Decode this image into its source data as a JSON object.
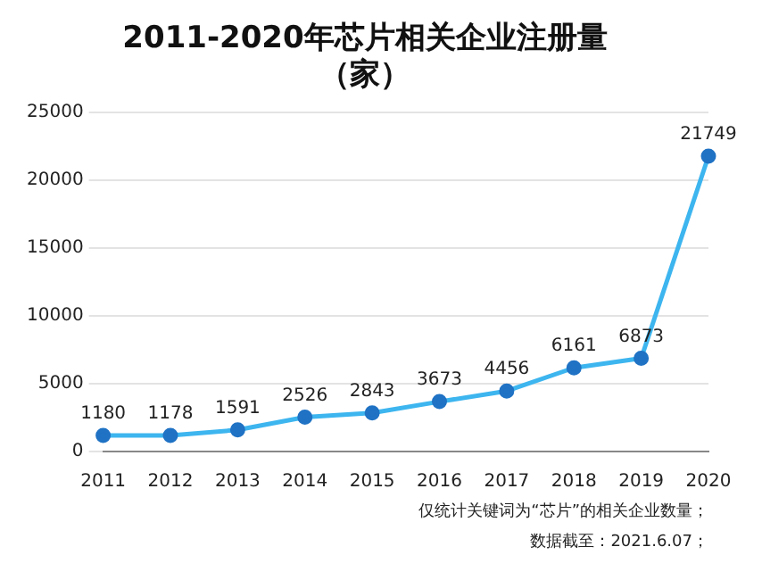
{
  "chart_data": {
    "type": "line",
    "title": "2011-2020年芯片相关企业注册量",
    "subtitle": "（家）",
    "categories": [
      "2011",
      "2012",
      "2013",
      "2014",
      "2015",
      "2016",
      "2017",
      "2018",
      "2019",
      "2020"
    ],
    "series": [
      {
        "color": "#3db5ef",
        "values": [
          1180,
          1178,
          1591,
          2526,
          2843,
          3673,
          4456,
          6161,
          6873,
          21749
        ]
      }
    ],
    "ylim": [
      0,
      25000
    ],
    "yticks": [
      0,
      5000,
      10000,
      15000,
      20000,
      25000
    ],
    "grid": "y",
    "marker": "circle",
    "data_labels": true,
    "legend": false,
    "annotations": [
      "仅统计关键词为“芯片”的相关企业数量；",
      "数据截至：2021.6.07；"
    ]
  }
}
